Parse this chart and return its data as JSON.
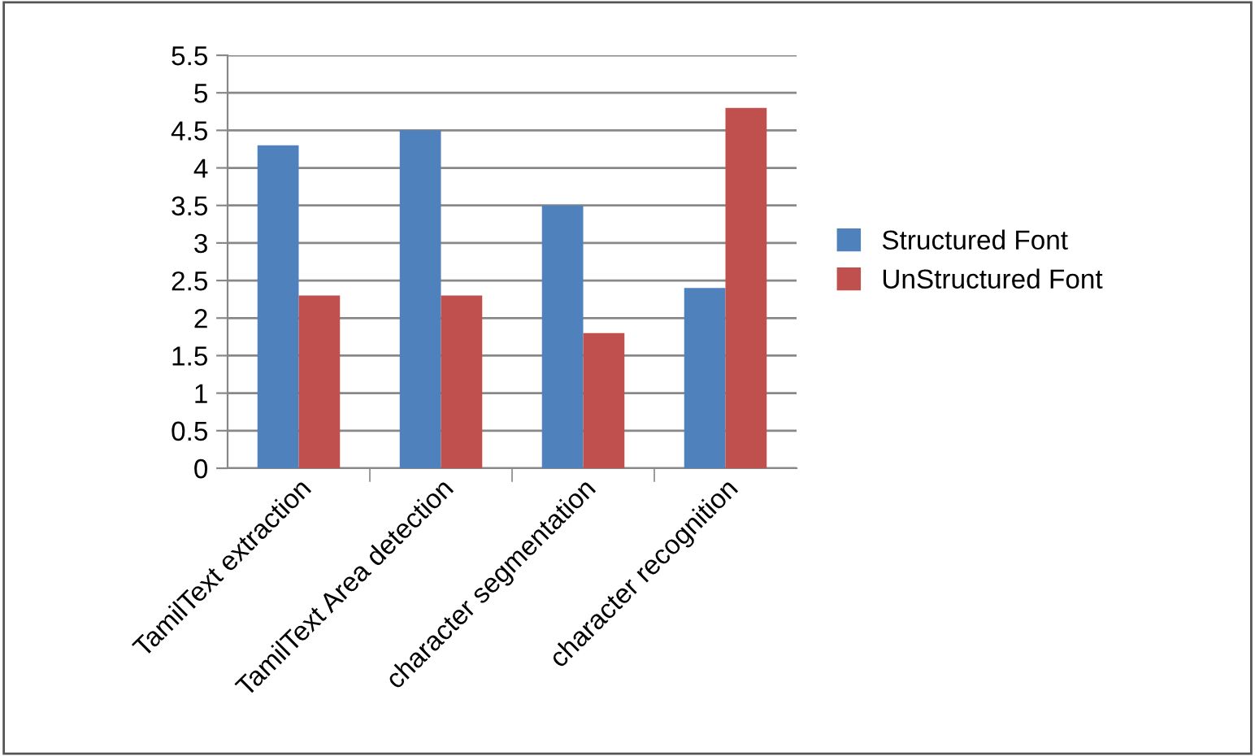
{
  "chart_data": {
    "type": "bar",
    "categories": [
      "TamilText extraction",
      "TamilText Area detection",
      "character segmentation",
      "character recognition"
    ],
    "series": [
      {
        "name": "Structured Font",
        "color": "#4f81bd",
        "values": [
          4.3,
          4.5,
          3.5,
          2.4
        ]
      },
      {
        "name": "UnStructured Font",
        "color": "#c0504d",
        "values": [
          2.3,
          2.3,
          1.8,
          4.8
        ]
      }
    ],
    "ylim": [
      0,
      5.5
    ],
    "yticks": [
      0,
      0.5,
      1,
      1.5,
      2,
      2.5,
      3,
      3.5,
      4,
      4.5,
      5,
      5.5
    ],
    "grid": "y",
    "legend": "right"
  }
}
